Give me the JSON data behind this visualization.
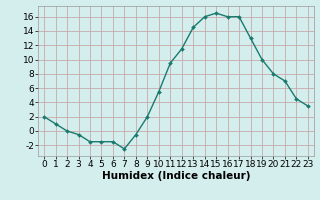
{
  "x": [
    0,
    1,
    2,
    3,
    4,
    5,
    6,
    7,
    8,
    9,
    10,
    11,
    12,
    13,
    14,
    15,
    16,
    17,
    18,
    19,
    20,
    21,
    22,
    23
  ],
  "y": [
    2,
    1,
    0,
    -0.5,
    -1.5,
    -1.5,
    -1.5,
    -2.5,
    -0.5,
    2,
    5.5,
    9.5,
    11.5,
    14.5,
    16,
    16.5,
    16,
    16,
    13,
    10,
    8,
    7,
    4.5,
    3.5
  ],
  "line_color": "#1a7a6e",
  "marker": "D",
  "marker_size": 2.0,
  "bg_color": "#d4eeee",
  "grid_color": "#c8aaaa",
  "xlabel": "Humidex (Indice chaleur)",
  "xlim": [
    -0.5,
    23.5
  ],
  "ylim": [
    -3.5,
    17.5
  ],
  "yticks": [
    -2,
    0,
    2,
    4,
    6,
    8,
    10,
    12,
    14,
    16
  ],
  "xticks": [
    0,
    1,
    2,
    3,
    4,
    5,
    6,
    7,
    8,
    9,
    10,
    11,
    12,
    13,
    14,
    15,
    16,
    17,
    18,
    19,
    20,
    21,
    22,
    23
  ],
  "xlabel_fontsize": 7.5,
  "tick_fontsize": 6.5,
  "line_width": 1.0
}
